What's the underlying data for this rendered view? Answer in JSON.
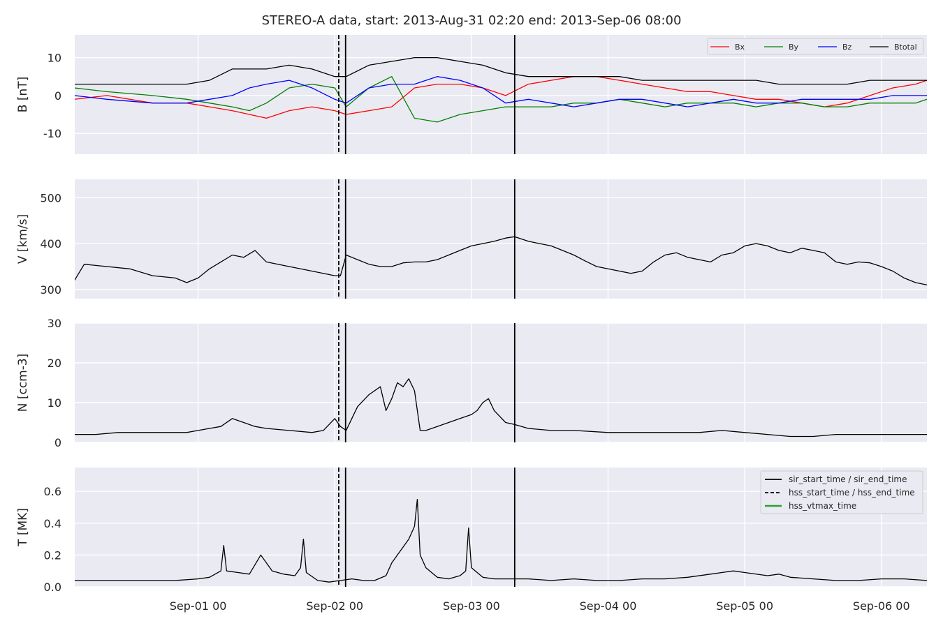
{
  "title": "STEREO-A data, start: 2013-Aug-31 02:20  end: 2013-Sep-06 08:00",
  "time_axis": {
    "start_hours": 2.333,
    "end_hours": 152.0,
    "tick_hours": [
      24,
      48,
      72,
      96,
      120,
      144
    ],
    "tick_labels": [
      "Sep-01 00",
      "Sep-02 00",
      "Sep-03 00",
      "Sep-04 00",
      "Sep-05 00",
      "Sep-06 00"
    ]
  },
  "event_lines": [
    {
      "name": "hss-start-line",
      "hour": 48.7,
      "style": "dashed"
    },
    {
      "name": "sir-start-line",
      "hour": 49.9,
      "style": "solid"
    },
    {
      "name": "sir-end-line",
      "hour": 79.6,
      "style": "solid"
    }
  ],
  "legend_events": [
    {
      "label": "sir_start_time / sir_end_time",
      "color": "#000000",
      "style": "solid"
    },
    {
      "label": "hss_start_time / hss_end_time",
      "color": "#000000",
      "style": "dashed"
    },
    {
      "label": "hss_vtmax_time",
      "color": "#2ca02c",
      "style": "solid"
    }
  ],
  "chart_data": [
    {
      "type": "line",
      "ylabel": "B [nT]",
      "ylim": [
        -15.5,
        16
      ],
      "yticks": [
        -10,
        0,
        10
      ],
      "grid": true,
      "legend_placement": "top-right",
      "series": [
        {
          "name": "Bx",
          "color": "#ff0000",
          "x": [
            2.3,
            8,
            16,
            22,
            26,
            30,
            33,
            36,
            40,
            44,
            48,
            50,
            54,
            58,
            62,
            66,
            70,
            74,
            78,
            82,
            86,
            90,
            94,
            98,
            102,
            106,
            110,
            114,
            118,
            122,
            126,
            130,
            134,
            138,
            142,
            146,
            150,
            152
          ],
          "y": [
            -1,
            0,
            -2,
            -2,
            -3,
            -4,
            -5,
            -6,
            -4,
            -3,
            -4,
            -5,
            -4,
            -3,
            2,
            3,
            3,
            2,
            0,
            3,
            4,
            5,
            5,
            4,
            3,
            2,
            1,
            1,
            0,
            -1,
            -1,
            -2,
            -3,
            -2,
            0,
            2,
            3,
            4
          ]
        },
        {
          "name": "By",
          "color": "#008000",
          "x": [
            2.3,
            8,
            16,
            22,
            26,
            30,
            33,
            36,
            40,
            44,
            48,
            50,
            54,
            58,
            62,
            66,
            70,
            74,
            78,
            82,
            86,
            90,
            94,
            98,
            102,
            106,
            110,
            114,
            118,
            122,
            126,
            130,
            134,
            138,
            142,
            146,
            150,
            152
          ],
          "y": [
            2,
            1,
            0,
            -1,
            -2,
            -3,
            -4,
            -2,
            2,
            3,
            2,
            -3,
            2,
            5,
            -6,
            -7,
            -5,
            -4,
            -3,
            -3,
            -3,
            -2,
            -2,
            -1,
            -2,
            -3,
            -2,
            -2,
            -2,
            -3,
            -2,
            -2,
            -3,
            -3,
            -2,
            -2,
            -2,
            -1
          ]
        },
        {
          "name": "Bz",
          "color": "#0000ff",
          "x": [
            2.3,
            8,
            16,
            22,
            26,
            30,
            33,
            36,
            40,
            44,
            48,
            50,
            54,
            58,
            62,
            66,
            70,
            74,
            78,
            82,
            86,
            90,
            94,
            98,
            102,
            106,
            110,
            114,
            118,
            122,
            126,
            130,
            134,
            138,
            142,
            146,
            150,
            152
          ],
          "y": [
            0,
            -1,
            -2,
            -2,
            -1,
            0,
            2,
            3,
            4,
            2,
            -1,
            -2,
            2,
            3,
            3,
            5,
            4,
            2,
            -2,
            -1,
            -2,
            -3,
            -2,
            -1,
            -1,
            -2,
            -3,
            -2,
            -1,
            -2,
            -2,
            -1,
            -1,
            -1,
            -1,
            0,
            0,
            0
          ]
        },
        {
          "name": "Btotal",
          "color": "#000000",
          "x": [
            2.3,
            8,
            16,
            22,
            26,
            30,
            33,
            36,
            40,
            44,
            48,
            50,
            54,
            58,
            62,
            66,
            70,
            74,
            78,
            82,
            86,
            90,
            94,
            98,
            102,
            106,
            110,
            114,
            118,
            122,
            126,
            130,
            134,
            138,
            142,
            146,
            150,
            152
          ],
          "y": [
            3,
            3,
            3,
            3,
            4,
            7,
            7,
            7,
            8,
            7,
            5,
            5,
            8,
            9,
            10,
            10,
            9,
            8,
            6,
            5,
            5,
            5,
            5,
            5,
            4,
            4,
            4,
            4,
            4,
            4,
            3,
            3,
            3,
            3,
            4,
            4,
            4,
            4
          ]
        }
      ]
    },
    {
      "type": "line",
      "ylabel": "V [km/s]",
      "ylim": [
        280,
        540
      ],
      "yticks": [
        300,
        400,
        500
      ],
      "grid": true,
      "series": [
        {
          "color": "#000000",
          "x": [
            2.3,
            4,
            8,
            12,
            16,
            20,
            22,
            24,
            26,
            28,
            30,
            32,
            34,
            36,
            40,
            44,
            48,
            49,
            50,
            52,
            54,
            56,
            58,
            60,
            62,
            64,
            66,
            68,
            70,
            72,
            74,
            76,
            78,
            79.6,
            82,
            84,
            86,
            88,
            90,
            92,
            94,
            96,
            98,
            100,
            102,
            104,
            106,
            108,
            110,
            112,
            114,
            116,
            118,
            120,
            122,
            124,
            126,
            128,
            130,
            132,
            134,
            136,
            138,
            140,
            142,
            144,
            146,
            148,
            150,
            152
          ],
          "y": [
            320,
            355,
            350,
            345,
            330,
            325,
            315,
            325,
            345,
            360,
            375,
            370,
            385,
            360,
            350,
            340,
            330,
            330,
            375,
            365,
            355,
            350,
            350,
            358,
            360,
            360,
            365,
            375,
            385,
            395,
            400,
            405,
            412,
            415,
            405,
            400,
            395,
            385,
            375,
            362,
            350,
            345,
            340,
            335,
            340,
            360,
            375,
            380,
            370,
            365,
            360,
            375,
            380,
            395,
            400,
            395,
            385,
            380,
            390,
            385,
            380,
            360,
            355,
            360,
            358,
            350,
            340,
            325,
            315,
            310
          ]
        }
      ]
    },
    {
      "type": "line",
      "ylabel": "N [ccm-3]",
      "ylim": [
        0,
        30
      ],
      "yticks": [
        0,
        10,
        20,
        30
      ],
      "grid": true,
      "series": [
        {
          "color": "#000000",
          "x": [
            2.3,
            6,
            10,
            14,
            18,
            22,
            24,
            26,
            28,
            30,
            32,
            34,
            36,
            40,
            44,
            46,
            48,
            49,
            50,
            51,
            52,
            54,
            56,
            57,
            58,
            59,
            60,
            61,
            62,
            63,
            64,
            66,
            68,
            70,
            72,
            73,
            74,
            75,
            76,
            78,
            79.6,
            82,
            86,
            90,
            96,
            100,
            104,
            108,
            112,
            116,
            120,
            124,
            128,
            132,
            136,
            140,
            144,
            148,
            152
          ],
          "y": [
            2,
            2,
            2.5,
            2.5,
            2.5,
            2.5,
            3,
            3.5,
            4,
            6,
            5,
            4,
            3.5,
            3,
            2.5,
            3,
            6,
            4,
            3,
            6,
            9,
            12,
            14,
            8,
            11,
            15,
            14,
            16,
            13,
            3,
            3,
            4,
            5,
            6,
            7,
            8,
            10,
            11,
            8,
            5,
            4.5,
            3.5,
            3,
            3,
            2.5,
            2.5,
            2.5,
            2.5,
            2.5,
            3,
            2.5,
            2,
            1.5,
            1.5,
            2,
            2,
            2,
            2,
            2
          ]
        }
      ]
    },
    {
      "type": "line",
      "ylabel": "T [MK]",
      "ylim": [
        0,
        0.75
      ],
      "yticks": [
        0.0,
        0.2,
        0.4,
        0.6
      ],
      "grid": true,
      "legend_placement": "top-right",
      "series": [
        {
          "color": "#000000",
          "x": [
            2.3,
            8,
            14,
            20,
            24,
            26,
            28,
            28.5,
            29,
            31,
            33,
            35,
            37,
            39,
            41,
            42,
            42.5,
            43,
            45,
            47,
            49,
            51,
            53,
            55,
            57,
            58,
            59,
            60,
            61,
            62,
            62.5,
            63,
            64,
            66,
            68,
            70,
            71,
            71.5,
            72,
            74,
            76,
            79.6,
            82,
            86,
            90,
            94,
            98,
            102,
            106,
            110,
            114,
            116,
            118,
            120,
            124,
            126,
            128,
            132,
            136,
            140,
            144,
            148,
            152
          ],
          "y": [
            0.04,
            0.04,
            0.04,
            0.04,
            0.05,
            0.06,
            0.1,
            0.26,
            0.1,
            0.09,
            0.08,
            0.2,
            0.1,
            0.08,
            0.07,
            0.12,
            0.3,
            0.09,
            0.04,
            0.03,
            0.04,
            0.05,
            0.04,
            0.04,
            0.07,
            0.15,
            0.2,
            0.25,
            0.3,
            0.38,
            0.55,
            0.2,
            0.12,
            0.06,
            0.05,
            0.07,
            0.1,
            0.37,
            0.12,
            0.06,
            0.05,
            0.05,
            0.05,
            0.04,
            0.05,
            0.04,
            0.04,
            0.05,
            0.05,
            0.06,
            0.08,
            0.09,
            0.1,
            0.09,
            0.07,
            0.08,
            0.06,
            0.05,
            0.04,
            0.04,
            0.05,
            0.05,
            0.04
          ]
        }
      ]
    }
  ]
}
